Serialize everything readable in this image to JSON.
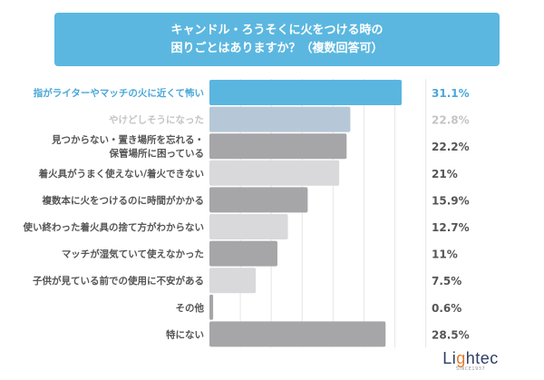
{
  "chart_data": {
    "type": "bar",
    "orientation": "horizontal",
    "title": "キャンドル・ろうそくに火をつける時の\n困りごとはありますか？（複数回答可）",
    "title_lines": [
      "キャンドル・ろうそくに火をつける時の",
      "困りごとはありますか？（複数回答可）"
    ],
    "categories": [
      "指がライターやマッチの火に近くて怖い",
      "やけどしそうになった",
      "見つからない・置き場所を忘れる・\n保管場所に困っている",
      "着火具がうまく使えない/着火できない",
      "複数本に火をつけるのに時間がかかる",
      "使い終わった着火具の捨て方がわからない",
      "マッチが湿気ていて使えなかった",
      "子供が見ている前での使用に不安がある",
      "その他",
      "特にない"
    ],
    "values": [
      31.1,
      22.8,
      22.2,
      21,
      15.9,
      12.7,
      11,
      7.5,
      0.6,
      28.5
    ],
    "value_labels": [
      "31.1%",
      "22.8%",
      "22.2%",
      "21%",
      "15.9%",
      "12.7%",
      "11%",
      "7.5%",
      "0.6%",
      "28.5%"
    ],
    "xlim": [
      0,
      35
    ],
    "grid": true,
    "bar_colors": [
      "#5ab5df",
      "#b6c8d7",
      "#a6a6a8",
      "#d9d9db",
      "#a6a6a8",
      "#d9d9db",
      "#a6a6a8",
      "#d9d9db",
      "#a6a6a8",
      "#a6a6a8"
    ],
    "label_colors": [
      "#4aa8d8",
      "#c4c4c4",
      "#555555",
      "#555555",
      "#555555",
      "#555555",
      "#555555",
      "#555555",
      "#555555",
      "#555555"
    ]
  },
  "logo": {
    "name": "Lightec",
    "since": "SINCE1937"
  }
}
